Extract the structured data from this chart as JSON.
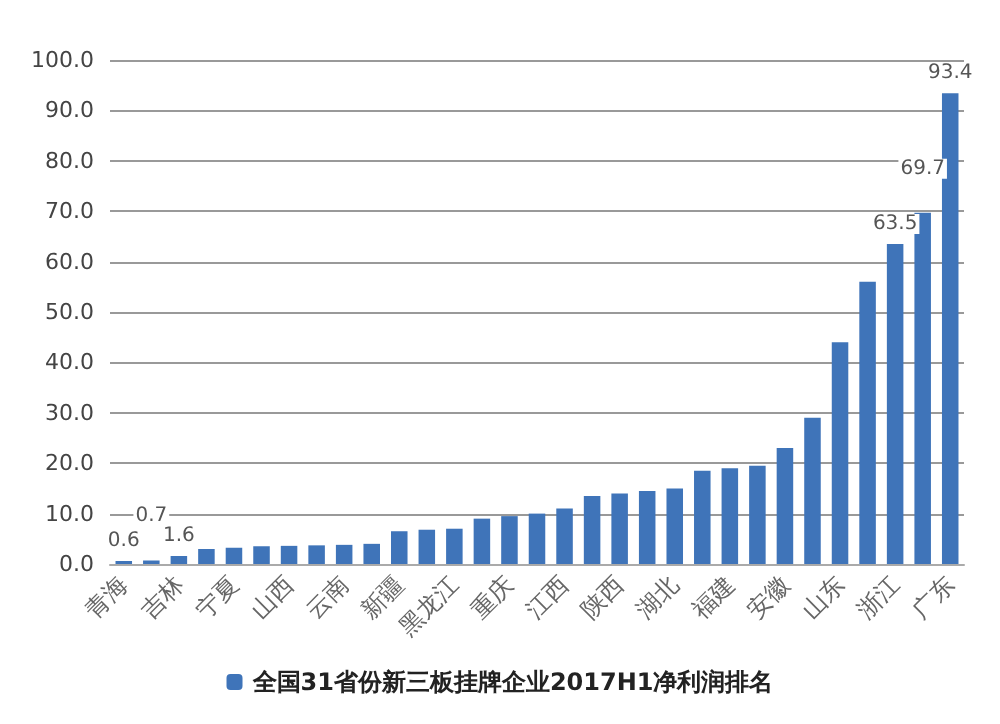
{
  "chart_data": {
    "type": "bar",
    "categories": [
      "青海",
      null,
      "吉林",
      null,
      "宁夏",
      null,
      "山西",
      null,
      "云南",
      null,
      "新疆",
      null,
      "黑龙江",
      null,
      "重庆",
      null,
      "江西",
      null,
      "陕西",
      null,
      "湖北",
      null,
      "福建",
      null,
      "安徽",
      null,
      "山东",
      null,
      "浙江",
      null,
      "广东"
    ],
    "series": [
      {
        "name": "全国31省份新三板挂牌企业2017H1净利润排名",
        "color": "#3f74b9",
        "values": [
          0.6,
          0.7,
          1.6,
          3.0,
          3.2,
          3.5,
          3.6,
          3.7,
          3.8,
          4.0,
          6.5,
          6.8,
          7.0,
          9.0,
          9.5,
          10.0,
          11.0,
          13.5,
          14.0,
          14.5,
          15.0,
          18.5,
          19.0,
          19.5,
          23.0,
          29.0,
          44.0,
          56.0,
          63.5,
          69.7,
          93.4
        ],
        "value_labels": [
          "0.6",
          "0.7",
          "1.6",
          null,
          null,
          null,
          null,
          null,
          null,
          null,
          null,
          null,
          null,
          null,
          null,
          null,
          null,
          null,
          null,
          null,
          null,
          null,
          null,
          null,
          null,
          null,
          null,
          null,
          "63.5",
          "69.7",
          "93.4"
        ]
      }
    ],
    "ylim": [
      0,
      100
    ],
    "yticks": [
      {
        "value": 0,
        "label": "0.0"
      },
      {
        "value": 10,
        "label": "10.0"
      },
      {
        "value": 20,
        "label": "20.0"
      },
      {
        "value": 30,
        "label": "30.0"
      },
      {
        "value": 40,
        "label": "40.0"
      },
      {
        "value": 50,
        "label": "50.0"
      },
      {
        "value": 60,
        "label": "60.0"
      },
      {
        "value": 70,
        "label": "70.0"
      },
      {
        "value": 80,
        "label": "80.0"
      },
      {
        "value": 90,
        "label": "90.0"
      },
      {
        "value": 100,
        "label": "100.0"
      }
    ],
    "grid": "y",
    "legend": "bottom"
  }
}
